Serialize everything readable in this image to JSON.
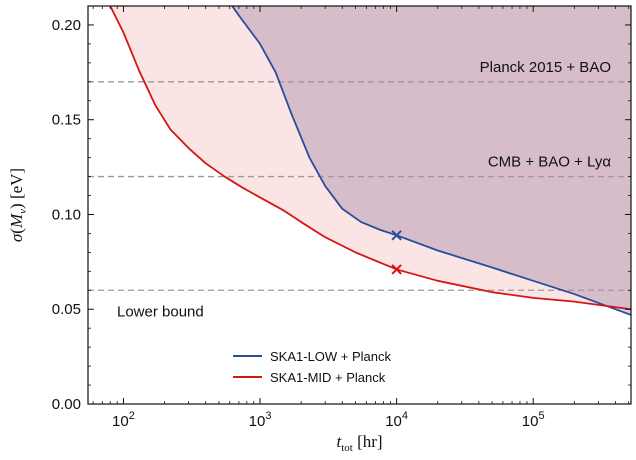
{
  "chart_data": {
    "type": "line",
    "xscale": "log",
    "xlim": [
      55,
      520000
    ],
    "ylim": [
      0.0,
      0.21
    ],
    "xlabel": "t_tot [hr]",
    "ylabel": "σ(M_ν) [eV]",
    "xticks": [
      100,
      1000,
      10000,
      100000
    ],
    "xtick_labels": [
      {
        "base": "10",
        "exp": "2"
      },
      {
        "base": "10",
        "exp": "3"
      },
      {
        "base": "10",
        "exp": "4"
      },
      {
        "base": "10",
        "exp": "5"
      }
    ],
    "yticks": [
      0.0,
      0.05,
      0.1,
      0.15,
      0.2
    ],
    "ytick_labels": [
      "0.00",
      "0.05",
      "0.10",
      "0.15",
      "0.20"
    ],
    "hlines": [
      {
        "y": 0.17,
        "label": "Planck 2015 + BAO",
        "color": "#9a9a9a"
      },
      {
        "y": 0.12,
        "label": "CMB + BAO + Lyα",
        "color": "#9a9a9a"
      },
      {
        "y": 0.06,
        "label": "Lower bound",
        "color": "#9a9a9a"
      }
    ],
    "series": [
      {
        "name": "SKA1-LOW + Planck",
        "color": "#2a4d9a",
        "fill": "#7a5a8a",
        "fill_opacity": 0.28,
        "x": [
          500,
          700,
          1000,
          1300,
          1700,
          2300,
          3000,
          4000,
          5500,
          7500,
          10000,
          20000,
          50000,
          100000,
          200000,
          520000
        ],
        "y": [
          0.22,
          0.205,
          0.19,
          0.175,
          0.153,
          0.13,
          0.115,
          0.103,
          0.096,
          0.092,
          0.089,
          0.081,
          0.072,
          0.065,
          0.058,
          0.047
        ]
      },
      {
        "name": "SKA1-MID + Planck",
        "color": "#d41616",
        "fill": "#f5b8b8",
        "fill_opacity": 0.38,
        "x": [
          80,
          100,
          130,
          170,
          220,
          300,
          400,
          550,
          750,
          1000,
          1500,
          2000,
          3000,
          5000,
          10000,
          20000,
          50000,
          100000,
          200000,
          520000
        ],
        "y": [
          0.21,
          0.196,
          0.176,
          0.158,
          0.145,
          0.135,
          0.127,
          0.12,
          0.114,
          0.109,
          0.102,
          0.096,
          0.088,
          0.08,
          0.071,
          0.065,
          0.059,
          0.056,
          0.054,
          0.05
        ]
      }
    ],
    "markers": [
      {
        "x": 10000,
        "y": 0.089,
        "symbol": "x",
        "color": "#2a4d9a"
      },
      {
        "x": 10000,
        "y": 0.071,
        "symbol": "x",
        "color": "#d41616"
      }
    ],
    "legend": {
      "placement": "lower-center",
      "entries": [
        "SKA1-LOW + Planck",
        "SKA1-MID + Planck"
      ]
    }
  }
}
